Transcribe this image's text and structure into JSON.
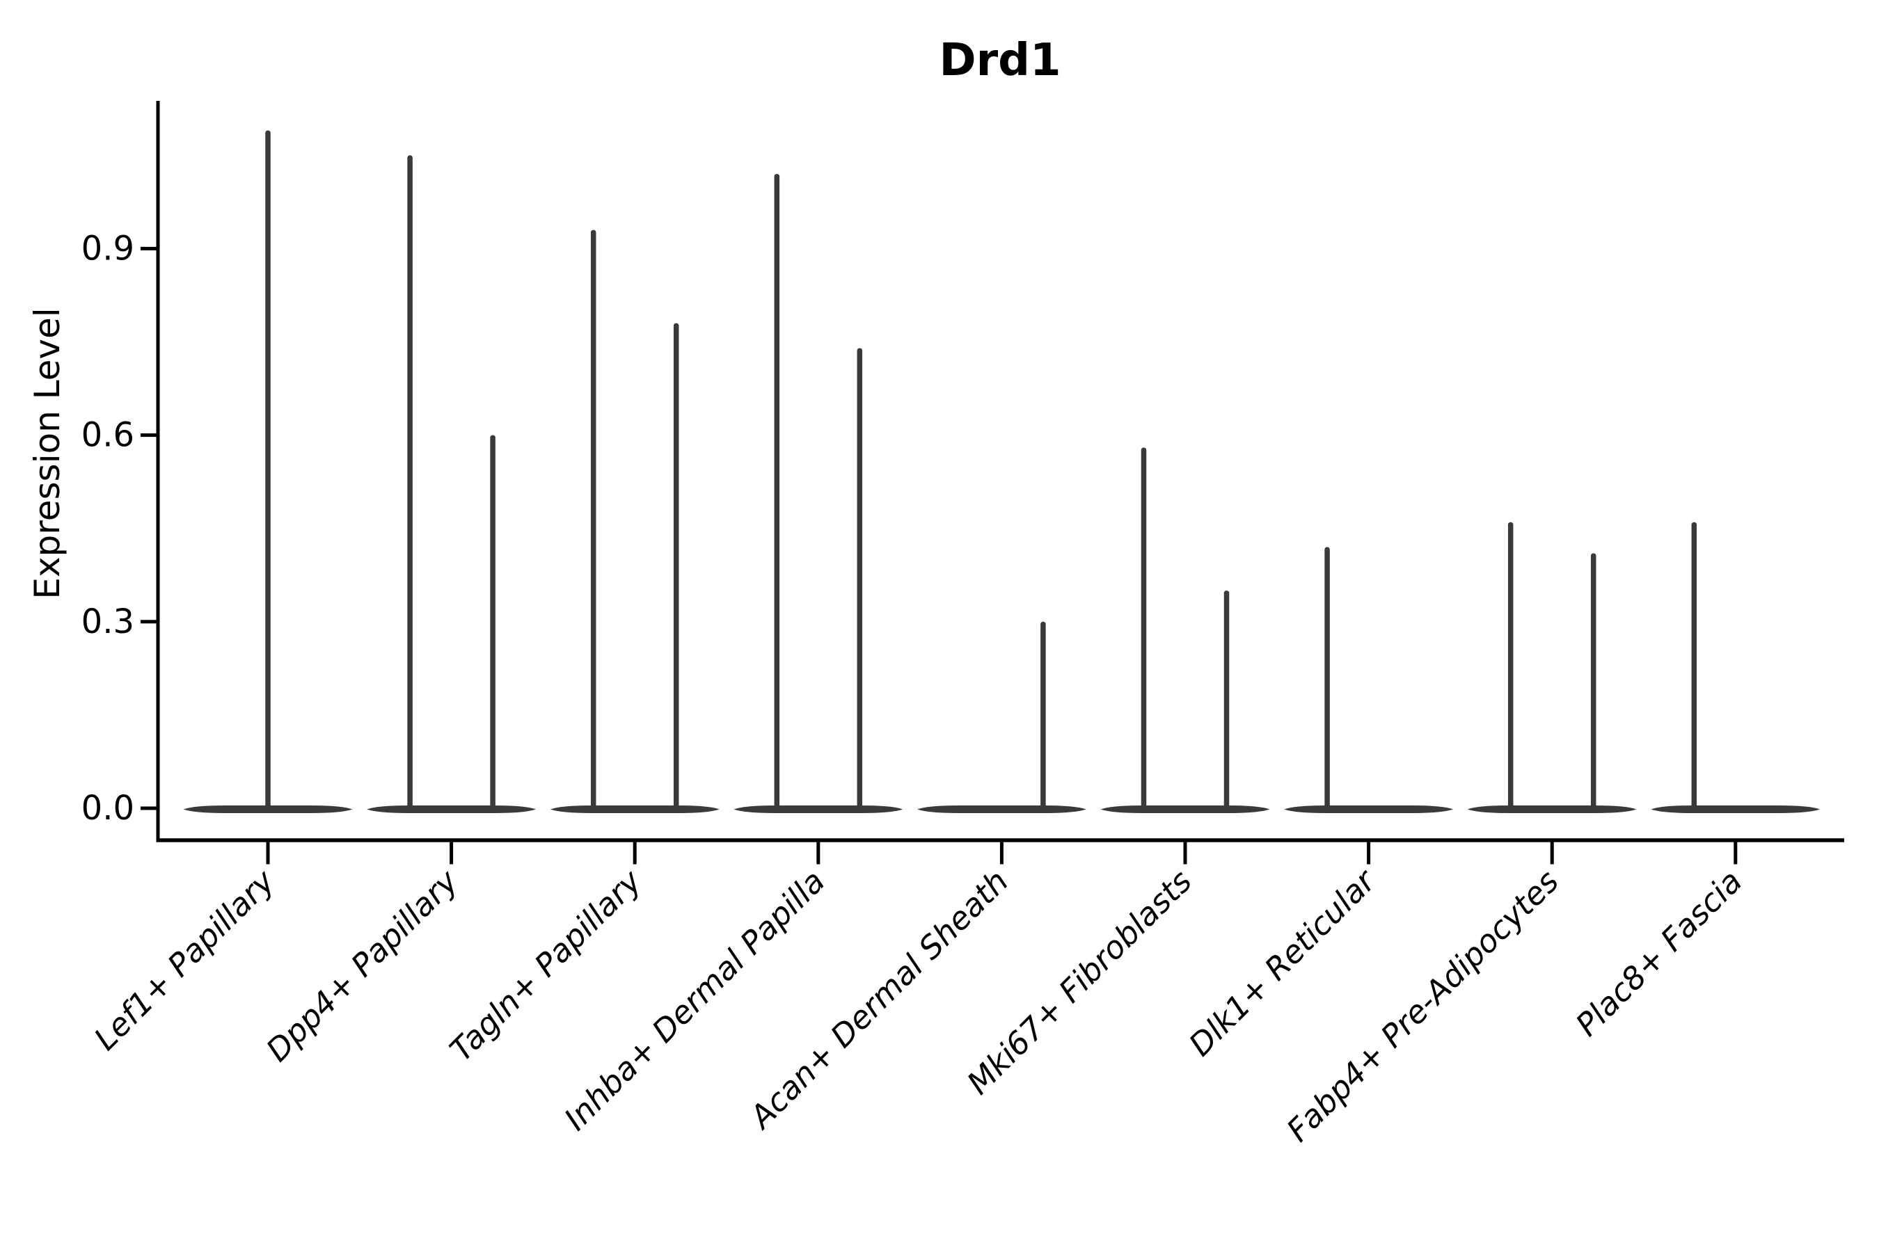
{
  "chart_data": {
    "type": "violin",
    "title": "Drd1",
    "ylabel": "Expression Level",
    "xlabel": "",
    "yticks": [
      0.0,
      0.3,
      0.6,
      0.9
    ],
    "ylim": [
      -0.051,
      1.138
    ],
    "grid": false,
    "legend": "none",
    "background": "#ffffff",
    "colors": {
      "violin": "#3a3a3a",
      "axis": "#000000",
      "text": "#000000"
    },
    "categories": [
      "Lef1+ Papillary",
      "Dpp4+ Papillary",
      "Tagln+ Papillary",
      "Inhba+ Dermal Papilla",
      "Acan+ Dermal Sheath",
      "Mki67+ Fibroblasts",
      "Dlk1+ Reticular",
      "Fabp4+ Pre-Adipocytes",
      "Plac8+ Fascia"
    ],
    "violins": [
      {
        "category": "Lef1+ Papillary",
        "spikes": [
          {
            "position": "center",
            "max": 1.09
          }
        ]
      },
      {
        "category": "Dpp4+ Papillary",
        "spikes": [
          {
            "position": "left",
            "max": 1.05
          },
          {
            "position": "right",
            "max": 0.6
          }
        ]
      },
      {
        "category": "Tagln+ Papillary",
        "spikes": [
          {
            "position": "left",
            "max": 0.93
          },
          {
            "position": "right",
            "max": 0.78
          }
        ]
      },
      {
        "category": "Inhba+ Dermal Papilla",
        "spikes": [
          {
            "position": "left",
            "max": 1.02
          },
          {
            "position": "right",
            "max": 0.74
          }
        ]
      },
      {
        "category": "Acan+ Dermal Sheath",
        "spikes": [
          {
            "position": "right",
            "max": 0.3
          }
        ]
      },
      {
        "category": "Mki67+ Fibroblasts",
        "spikes": [
          {
            "position": "left",
            "max": 0.58
          },
          {
            "position": "right",
            "max": 0.35
          }
        ]
      },
      {
        "category": "Dlk1+ Reticular",
        "spikes": [
          {
            "position": "left",
            "max": 0.42
          }
        ]
      },
      {
        "category": "Fabp4+ Pre-Adipocytes",
        "spikes": [
          {
            "position": "left",
            "max": 0.46
          },
          {
            "position": "right",
            "max": 0.41
          }
        ]
      },
      {
        "category": "Plac8+ Fascia",
        "spikes": [
          {
            "position": "left",
            "max": 0.46
          }
        ]
      }
    ]
  }
}
